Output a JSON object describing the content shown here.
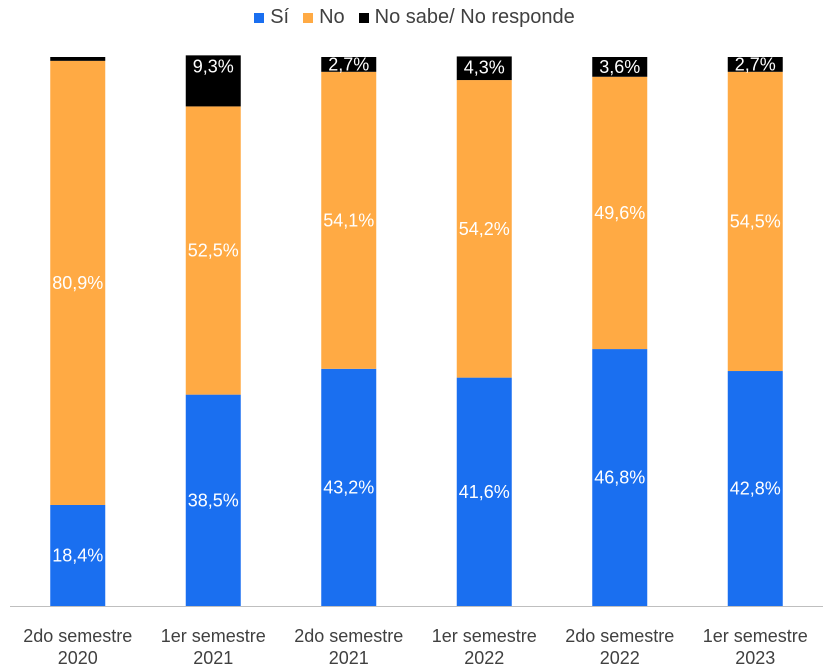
{
  "chart_data": {
    "type": "bar",
    "stacked": true,
    "percent_scale": true,
    "categories": [
      [
        "2do semestre",
        "2020"
      ],
      [
        "1er semestre",
        "2021"
      ],
      [
        "2do semestre",
        "2021"
      ],
      [
        "1er semestre",
        "2022"
      ],
      [
        "2do semestre",
        "2022"
      ],
      [
        "1er semestre",
        "2023"
      ]
    ],
    "series": [
      {
        "name": "Sí",
        "color": "#1a6ff0",
        "values": [
          18.4,
          38.5,
          43.2,
          41.6,
          46.8,
          42.8
        ],
        "labels": [
          "18,4%",
          "38,5%",
          "43,2%",
          "41,6%",
          "46,8%",
          "42,8%"
        ]
      },
      {
        "name": "No",
        "color": "#ffaa44",
        "values": [
          80.9,
          52.5,
          54.1,
          54.2,
          49.6,
          54.5
        ],
        "labels": [
          "80,9%",
          "52,5%",
          "54,1%",
          "54,2%",
          "49,6%",
          "54,5%"
        ]
      },
      {
        "name": "No sabe/ No responde",
        "color": "#000000",
        "values": [
          0.7,
          9.3,
          2.7,
          4.3,
          3.6,
          2.7
        ],
        "labels": [
          "",
          "9,3%",
          "2,7%",
          "4,3%",
          "3,6%",
          "2,7%"
        ]
      }
    ],
    "legend_position": "top",
    "grid": false
  }
}
